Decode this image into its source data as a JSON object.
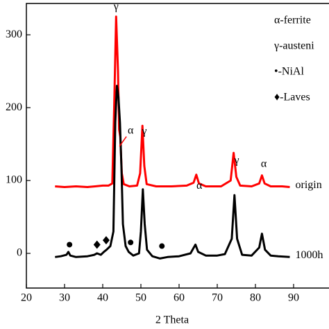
{
  "chart_data": {
    "type": "line",
    "xlabel": "2 Theta",
    "xlim": [
      20,
      98
    ],
    "xticks": [
      20,
      30,
      40,
      50,
      60,
      70,
      80,
      90
    ],
    "ylim": [
      -47.6,
      343
    ],
    "yticks": [
      0,
      100,
      200,
      300
    ],
    "series": [
      {
        "name": "origin",
        "color": "#ff0000",
        "x": [
          27.5,
          30,
          33,
          36,
          38,
          40,
          41.5,
          42.5,
          43,
          43.5,
          44,
          44.3,
          44.6,
          45,
          45.5,
          47,
          49,
          49.8,
          50.4,
          50.9,
          51.5,
          54,
          58,
          62,
          63.8,
          64.5,
          65.2,
          67,
          71,
          73.5,
          74.3,
          75,
          76,
          79,
          81,
          81.7,
          82.4,
          84,
          87,
          89
        ],
        "values": [
          92,
          91,
          92,
          91,
          92,
          93,
          93,
          96,
          200,
          325,
          250,
          170,
          160,
          110,
          95,
          92,
          93,
          110,
          175,
          120,
          95,
          92,
          92,
          93,
          97,
          108,
          96,
          92,
          92,
          100,
          138,
          105,
          93,
          92,
          96,
          107,
          96,
          92,
          92,
          91
        ]
      },
      {
        "name": "1000h",
        "color": "#000000",
        "x": [
          27.5,
          29,
          30.5,
          31,
          31.5,
          33,
          36,
          37.8,
          38.5,
          39.5,
          40.3,
          41,
          42,
          42.8,
          43.3,
          43.7,
          44.1,
          44.5,
          44.9,
          45.3,
          46,
          46.8,
          48,
          49.5,
          50,
          50.5,
          51,
          51.6,
          53,
          55,
          57,
          60,
          63,
          64.3,
          65,
          67,
          70,
          72,
          73.8,
          74.5,
          75.2,
          76.5,
          79,
          81,
          81.7,
          82.5,
          84,
          86,
          89
        ],
        "values": [
          -5,
          -4,
          -2,
          2,
          -3,
          -5,
          -4,
          -2,
          0,
          -2,
          2,
          5,
          10,
          30,
          180,
          230,
          215,
          180,
          120,
          40,
          10,
          2,
          -3,
          0,
          30,
          88,
          40,
          5,
          -4,
          -7,
          -5,
          -4,
          0,
          12,
          2,
          -3,
          -3,
          -1,
          20,
          80,
          20,
          -2,
          -3,
          8,
          27,
          5,
          -3,
          -4,
          -5
        ]
      }
    ],
    "peak_labels": [
      {
        "text": "γ",
        "x": 43.5,
        "y": 338
      },
      {
        "text": "α",
        "x": 47.3,
        "y": 168
      },
      {
        "text": "γ",
        "x": 50.9,
        "y": 167
      },
      {
        "text": "α",
        "x": 65.3,
        "y": 92
      },
      {
        "text": "γ",
        "x": 75.1,
        "y": 127
      },
      {
        "text": "α",
        "x": 82.2,
        "y": 122
      }
    ],
    "markers": [
      {
        "shape": "circle",
        "x": 31.3,
        "y": 12
      },
      {
        "shape": "circle",
        "x": 47.3,
        "y": 15
      },
      {
        "shape": "circle",
        "x": 55.5,
        "y": 10
      },
      {
        "shape": "diamond",
        "x": 38.5,
        "y": 12
      },
      {
        "shape": "diamond",
        "x": 40.9,
        "y": 18
      }
    ],
    "legend": [
      "α-ferrite",
      "γ-austeni",
      "•-NiAl",
      "♦-Laves"
    ]
  }
}
